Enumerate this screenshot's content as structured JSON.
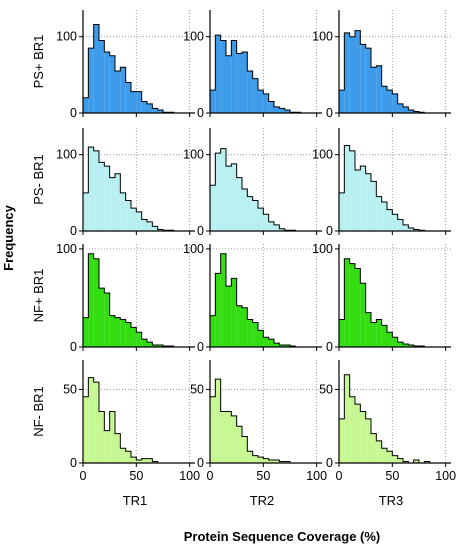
{
  "chart_data": {
    "type": "bar",
    "ylabel": "Frequency",
    "xlabel": "Protein Sequence Coverage (%)",
    "columns": [
      "TR1",
      "TR2",
      "TR3"
    ],
    "rows": [
      {
        "label": "PS+ BR1",
        "color": "#3d9be9",
        "ylim": [
          0,
          135
        ],
        "yticks": [
          0,
          100
        ]
      },
      {
        "label": "PS- BR1",
        "color": "#b8f0f2",
        "ylim": [
          0,
          135
        ],
        "yticks": [
          0,
          100
        ]
      },
      {
        "label": "NF+ BR1",
        "color": "#33dd11",
        "ylim": [
          0,
          105
        ],
        "yticks": [
          0,
          100
        ]
      },
      {
        "label": "NF- BR1",
        "color": "#c6f792",
        "ylim": [
          0,
          70
        ],
        "yticks": [
          0,
          50
        ]
      }
    ],
    "bin_width": 5,
    "xlim": [
      0,
      105
    ],
    "xticks": [
      0,
      50,
      100
    ],
    "grid": "dotted",
    "series": [
      {
        "row": "PS+ BR1",
        "column": "TR1",
        "values": [
          20,
          85,
          116,
          95,
          80,
          75,
          55,
          60,
          40,
          28,
          28,
          15,
          12,
          6,
          4,
          1,
          1,
          0,
          0,
          0
        ]
      },
      {
        "row": "PS+ BR1",
        "column": "TR2",
        "values": [
          30,
          102,
          95,
          75,
          95,
          78,
          80,
          55,
          45,
          30,
          25,
          15,
          8,
          6,
          4,
          1,
          1,
          0,
          0,
          0
        ]
      },
      {
        "row": "PS+ BR1",
        "column": "TR3",
        "values": [
          30,
          105,
          100,
          108,
          90,
          85,
          60,
          62,
          35,
          30,
          25,
          12,
          8,
          4,
          2,
          1,
          0,
          0,
          0,
          0
        ]
      },
      {
        "row": "PS- BR1",
        "column": "TR1",
        "values": [
          50,
          110,
          105,
          90,
          85,
          70,
          75,
          50,
          40,
          30,
          25,
          15,
          12,
          6,
          2,
          1,
          1,
          0,
          0,
          0
        ]
      },
      {
        "row": "PS- BR1",
        "column": "TR2",
        "values": [
          60,
          102,
          108,
          85,
          88,
          70,
          55,
          45,
          40,
          30,
          22,
          12,
          8,
          3,
          1,
          1,
          0,
          0,
          0,
          0
        ]
      },
      {
        "row": "PS- BR1",
        "column": "TR3",
        "values": [
          50,
          112,
          105,
          80,
          85,
          75,
          65,
          45,
          38,
          28,
          22,
          15,
          8,
          4,
          2,
          1,
          0,
          0,
          0,
          0
        ]
      },
      {
        "row": "NF+ BR1",
        "column": "TR1",
        "values": [
          30,
          95,
          90,
          60,
          55,
          32,
          30,
          28,
          25,
          20,
          15,
          8,
          5,
          2,
          2,
          1,
          1,
          0,
          0,
          0
        ]
      },
      {
        "row": "NF+ BR1",
        "column": "TR2",
        "values": [
          32,
          75,
          95,
          62,
          70,
          42,
          40,
          28,
          25,
          17,
          10,
          8,
          4,
          2,
          2,
          1,
          0,
          0,
          0,
          0
        ]
      },
      {
        "row": "NF+ BR1",
        "column": "TR3",
        "values": [
          28,
          90,
          85,
          80,
          65,
          35,
          25,
          28,
          22,
          15,
          10,
          5,
          3,
          2,
          1,
          1,
          0,
          0,
          0,
          0
        ]
      },
      {
        "row": "NF- BR1",
        "column": "TR1",
        "values": [
          45,
          58,
          55,
          35,
          22,
          35,
          20,
          10,
          8,
          4,
          2,
          3,
          3,
          1,
          0,
          0,
          0,
          0,
          0,
          0
        ]
      },
      {
        "row": "NF- BR1",
        "column": "TR2",
        "values": [
          45,
          57,
          35,
          35,
          32,
          25,
          18,
          8,
          5,
          4,
          3,
          2,
          2,
          1,
          1,
          0,
          0,
          0,
          0,
          0
        ]
      },
      {
        "row": "NF- BR1",
        "column": "TR3",
        "values": [
          30,
          60,
          45,
          40,
          35,
          30,
          20,
          15,
          10,
          8,
          5,
          3,
          1,
          0,
          2,
          0,
          1,
          0,
          0,
          0
        ]
      }
    ]
  }
}
